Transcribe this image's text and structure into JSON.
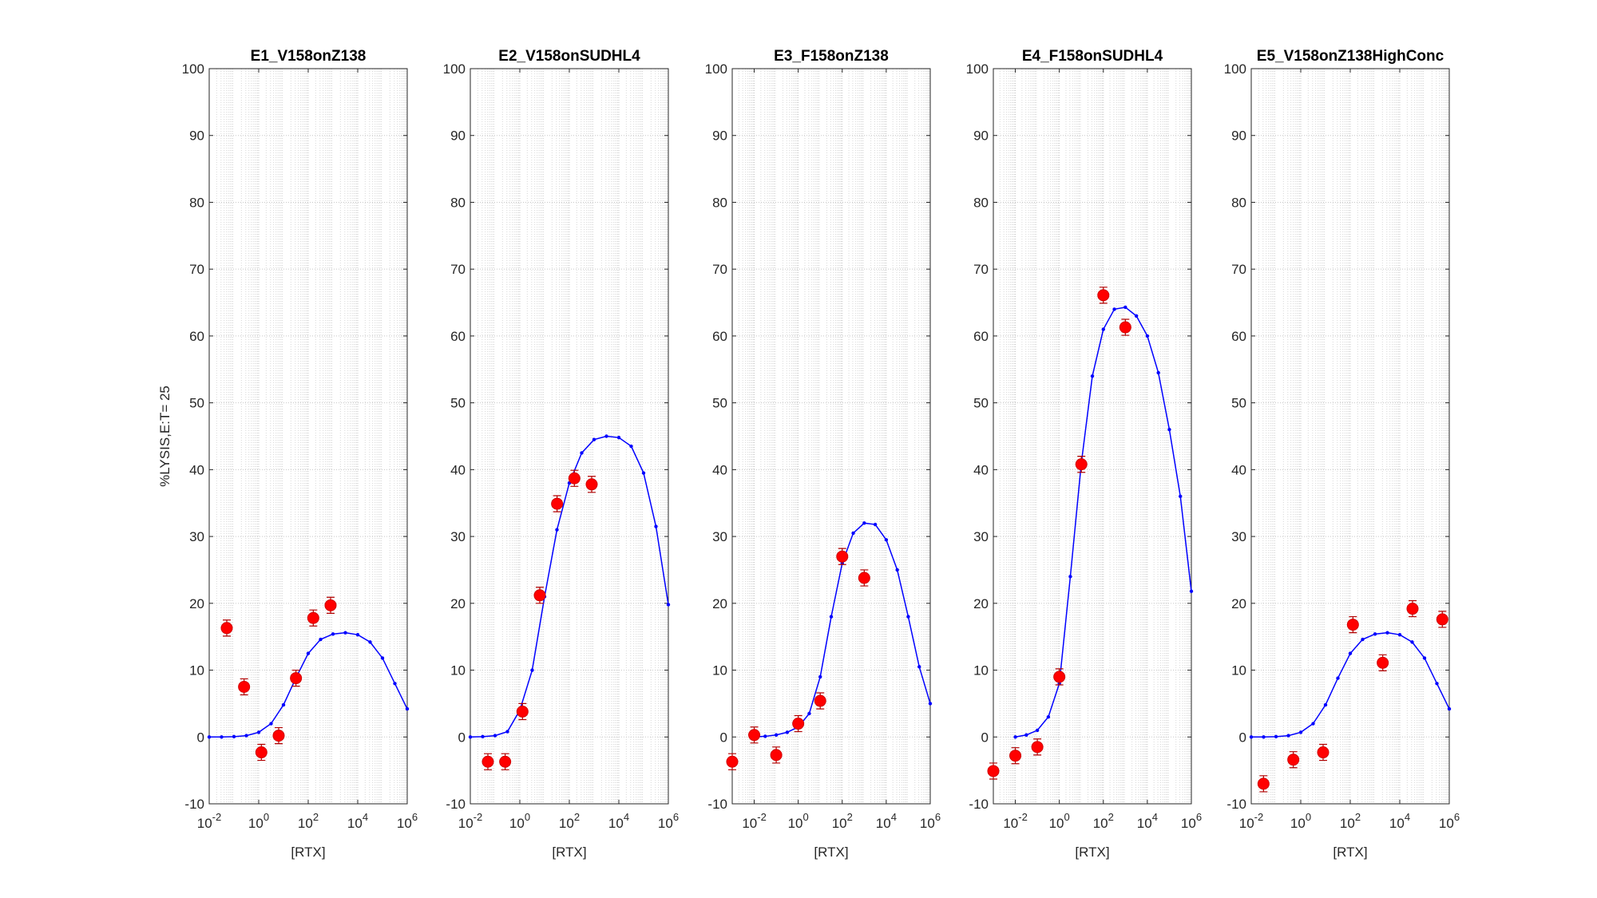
{
  "chart_data": [
    {
      "type": "scatter",
      "title": "E1_V158onZ138",
      "xlabel": "[RTX]",
      "ylabel": "%LYSIS,E:T= 25",
      "log_x": true,
      "grid": true,
      "minor_grid": true,
      "xlim": [
        0.01,
        1000000
      ],
      "xticks": [
        {
          "value": 0.01,
          "label": "10^-2"
        },
        {
          "value": 1,
          "label": "10^0"
        },
        {
          "value": 100,
          "label": "10^2"
        },
        {
          "value": 10000,
          "label": "10^4"
        },
        {
          "value": 1000000,
          "label": "10^6"
        }
      ],
      "ylim": [
        -10,
        100
      ],
      "yticks": [
        -10,
        0,
        10,
        20,
        30,
        40,
        50,
        60,
        70,
        80,
        90,
        100
      ],
      "points": {
        "color": "#ff0000",
        "x": [
          0.0512,
          0.256,
          1.28,
          6.4,
          32,
          160,
          800
        ],
        "y": [
          16.3,
          7.5,
          -2.3,
          0.2,
          8.8,
          17.8,
          19.7
        ],
        "errors": [
          1.2,
          1.2,
          1.2,
          1.2,
          1.2,
          1.2,
          1.2
        ]
      },
      "fit": {
        "color": "#0000ff",
        "x": [
          0.01,
          0.0316,
          0.1,
          0.316,
          1,
          3.16,
          10,
          31.6,
          100,
          316,
          1000,
          3162,
          10000,
          31623,
          100000,
          316228,
          1000000
        ],
        "y": [
          0,
          0,
          0.05,
          0.2,
          0.7,
          2.0,
          4.8,
          8.8,
          12.5,
          14.6,
          15.4,
          15.6,
          15.3,
          14.2,
          11.8,
          8.0,
          4.2
        ]
      }
    },
    {
      "type": "scatter",
      "title": "E2_V158onSUDHL4",
      "xlabel": "[RTX]",
      "log_x": true,
      "grid": true,
      "minor_grid": true,
      "xlim": [
        0.01,
        1000000
      ],
      "xticks": [
        {
          "value": 0.01,
          "label": "10^-2"
        },
        {
          "value": 1,
          "label": "10^0"
        },
        {
          "value": 100,
          "label": "10^2"
        },
        {
          "value": 10000,
          "label": "10^4"
        },
        {
          "value": 1000000,
          "label": "10^6"
        }
      ],
      "ylim": [
        -10,
        100
      ],
      "yticks": [
        -10,
        0,
        10,
        20,
        30,
        40,
        50,
        60,
        70,
        80,
        90,
        100
      ],
      "points": {
        "color": "#ff0000",
        "x": [
          0.0512,
          0.256,
          1.28,
          6.4,
          32,
          160,
          800
        ],
        "y": [
          -3.7,
          -3.7,
          3.8,
          21.2,
          34.9,
          38.7,
          37.8
        ],
        "errors": [
          1.2,
          1.2,
          1.2,
          1.2,
          1.2,
          1.2,
          1.2
        ]
      },
      "fit": {
        "color": "#0000ff",
        "x": [
          0.01,
          0.0316,
          0.1,
          0.316,
          1,
          3.16,
          10,
          31.6,
          100,
          316,
          1000,
          3162,
          10000,
          31623,
          100000,
          316228,
          1000000
        ],
        "y": [
          0,
          0.05,
          0.2,
          0.8,
          4,
          10,
          21,
          31,
          38,
          42.5,
          44.5,
          45,
          44.8,
          43.5,
          39.5,
          31.5,
          19.8
        ]
      }
    },
    {
      "type": "scatter",
      "title": "E3_F158onZ138",
      "xlabel": "[RTX]",
      "log_x": true,
      "grid": true,
      "minor_grid": true,
      "xlim": [
        0.001,
        1000000
      ],
      "xticks": [
        {
          "value": 0.01,
          "label": "10^-2"
        },
        {
          "value": 1,
          "label": "10^0"
        },
        {
          "value": 100,
          "label": "10^2"
        },
        {
          "value": 10000,
          "label": "10^4"
        },
        {
          "value": 1000000,
          "label": "10^6"
        }
      ],
      "ylim": [
        -10,
        100
      ],
      "yticks": [
        -10,
        0,
        10,
        20,
        30,
        40,
        50,
        60,
        70,
        80,
        90,
        100
      ],
      "points": {
        "color": "#ff0000",
        "x": [
          0.001,
          0.01,
          0.1,
          1,
          10,
          100,
          1000
        ],
        "y": [
          -3.7,
          0.3,
          -2.7,
          2.0,
          5.4,
          27,
          23.8
        ],
        "errors": [
          1.2,
          1.2,
          1.2,
          1.2,
          1.2,
          1.2,
          1.2
        ]
      },
      "fit": {
        "color": "#0000ff",
        "x": [
          0.01,
          0.0316,
          0.1,
          0.316,
          1,
          3.16,
          10,
          31.6,
          100,
          316,
          1000,
          3162,
          10000,
          31623,
          100000,
          316228,
          1000000
        ],
        "y": [
          0,
          0.1,
          0.3,
          0.7,
          1.5,
          3.5,
          9,
          18,
          26,
          30.5,
          32,
          31.8,
          29.5,
          25,
          18,
          10.5,
          5
        ]
      }
    },
    {
      "type": "scatter",
      "title": "E4_F158onSUDHL4",
      "xlabel": "[RTX]",
      "log_x": true,
      "grid": true,
      "minor_grid": true,
      "xlim": [
        0.001,
        1000000
      ],
      "xticks": [
        {
          "value": 0.01,
          "label": "10^-2"
        },
        {
          "value": 1,
          "label": "10^0"
        },
        {
          "value": 100,
          "label": "10^2"
        },
        {
          "value": 10000,
          "label": "10^4"
        },
        {
          "value": 1000000,
          "label": "10^6"
        }
      ],
      "ylim": [
        -10,
        100
      ],
      "yticks": [
        -10,
        0,
        10,
        20,
        30,
        40,
        50,
        60,
        70,
        80,
        90,
        100
      ],
      "points": {
        "color": "#ff0000",
        "x": [
          0.001,
          0.01,
          0.1,
          1,
          10,
          100,
          1000
        ],
        "y": [
          -5.1,
          -2.8,
          -1.5,
          9.0,
          40.8,
          66.1,
          61.3
        ],
        "errors": [
          1.2,
          1.2,
          1.2,
          1.2,
          1.2,
          1.2,
          1.2
        ]
      },
      "fit": {
        "color": "#0000ff",
        "x": [
          0.01,
          0.0316,
          0.1,
          0.316,
          1,
          3.16,
          10,
          31.6,
          100,
          316,
          1000,
          3162,
          10000,
          31623,
          100000,
          316228,
          1000000
        ],
        "y": [
          0,
          0.3,
          1,
          3,
          8,
          24,
          41,
          54,
          61,
          64,
          64.3,
          63,
          60,
          54.5,
          46,
          36,
          21.8
        ]
      }
    },
    {
      "type": "scatter",
      "title": "E5_V158onZ138HighConc",
      "xlabel": "[RTX]",
      "log_x": true,
      "grid": true,
      "minor_grid": true,
      "xlim": [
        0.01,
        1000000
      ],
      "xticks": [
        {
          "value": 0.01,
          "label": "10^-2"
        },
        {
          "value": 1,
          "label": "10^0"
        },
        {
          "value": 100,
          "label": "10^2"
        },
        {
          "value": 10000,
          "label": "10^4"
        },
        {
          "value": 1000000,
          "label": "10^6"
        }
      ],
      "ylim": [
        -10,
        100
      ],
      "yticks": [
        -10,
        0,
        10,
        20,
        30,
        40,
        50,
        60,
        70,
        80,
        90,
        100
      ],
      "points": {
        "color": "#ff0000",
        "x": [
          0.03125,
          0.5,
          8,
          128,
          2048,
          32768,
          524288
        ],
        "y": [
          -7.0,
          -3.4,
          -2.3,
          16.8,
          11.1,
          19.2,
          17.6
        ],
        "errors": [
          1.2,
          1.2,
          1.2,
          1.2,
          1.2,
          1.2,
          1.2
        ]
      },
      "fit": {
        "color": "#0000ff",
        "x": [
          0.01,
          0.0316,
          0.1,
          0.316,
          1,
          3.16,
          10,
          31.6,
          100,
          316,
          1000,
          3162,
          10000,
          31623,
          100000,
          316228,
          1000000
        ],
        "y": [
          0,
          0,
          0.05,
          0.2,
          0.7,
          2.0,
          4.8,
          8.8,
          12.5,
          14.6,
          15.4,
          15.6,
          15.3,
          14.2,
          11.8,
          8.0,
          4.2
        ]
      }
    }
  ]
}
